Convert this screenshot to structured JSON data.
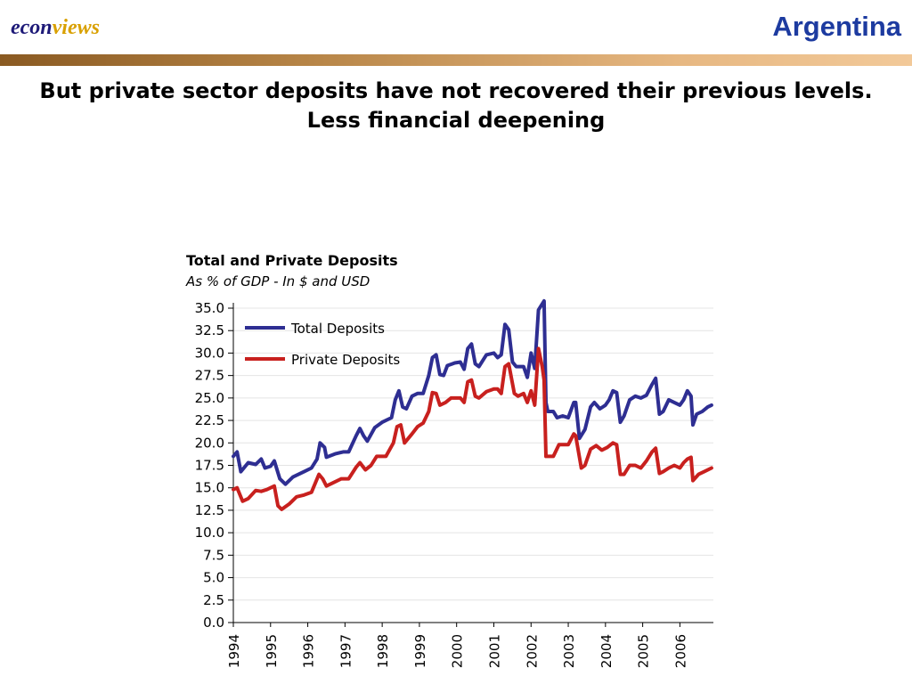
{
  "header": {
    "logo_part1": "econ",
    "logo_part2": "views",
    "country": "Argentina",
    "headline_line1": "But private sector deposits have not recovered their previous levels.",
    "headline_line2": "Less financial deepening"
  },
  "colors": {
    "logo_econ": "#1e1a78",
    "logo_views": "#d9a000",
    "country": "#1d3ba0",
    "total_series": "#2e2e92",
    "private_series": "#c8201e"
  },
  "chart_data": {
    "type": "line",
    "title": "Total and Private Deposits",
    "subtitle": "As % of GDP - In $ and USD",
    "ylim": [
      0,
      35
    ],
    "yticks": [
      "0.0",
      "2.5",
      "5.0",
      "7.5",
      "10.0",
      "12.5",
      "15.0",
      "17.5",
      "20.0",
      "22.5",
      "25.0",
      "27.5",
      "30.0",
      "32.5",
      "35.0"
    ],
    "xlim": [
      1994,
      2006.9
    ],
    "xticks": [
      "1994",
      "1995",
      "1996",
      "1997",
      "1998",
      "1999",
      "2000",
      "2001",
      "2002",
      "2003",
      "2004",
      "2005",
      "2006"
    ],
    "grid": true,
    "legend": "top-left",
    "series": [
      {
        "name": "Total Deposits",
        "points": [
          [
            1994.0,
            18.5
          ],
          [
            1994.1,
            19.0
          ],
          [
            1994.2,
            16.8
          ],
          [
            1994.4,
            17.8
          ],
          [
            1994.6,
            17.6
          ],
          [
            1994.75,
            18.2
          ],
          [
            1994.85,
            17.2
          ],
          [
            1995.0,
            17.4
          ],
          [
            1995.1,
            18.0
          ],
          [
            1995.25,
            16.0
          ],
          [
            1995.4,
            15.4
          ],
          [
            1995.6,
            16.2
          ],
          [
            1995.9,
            16.8
          ],
          [
            1996.1,
            17.2
          ],
          [
            1996.25,
            18.2
          ],
          [
            1996.33,
            20.0
          ],
          [
            1996.45,
            19.5
          ],
          [
            1996.5,
            18.4
          ],
          [
            1996.75,
            18.8
          ],
          [
            1996.95,
            19.0
          ],
          [
            1997.1,
            19.0
          ],
          [
            1997.3,
            20.8
          ],
          [
            1997.4,
            21.6
          ],
          [
            1997.5,
            20.8
          ],
          [
            1997.6,
            20.2
          ],
          [
            1997.8,
            21.7
          ],
          [
            1998.0,
            22.3
          ],
          [
            1998.25,
            22.8
          ],
          [
            1998.35,
            24.8
          ],
          [
            1998.45,
            25.8
          ],
          [
            1998.55,
            24.0
          ],
          [
            1998.65,
            23.8
          ],
          [
            1998.8,
            25.2
          ],
          [
            1998.95,
            25.5
          ],
          [
            1999.1,
            25.5
          ],
          [
            1999.25,
            27.5
          ],
          [
            1999.35,
            29.5
          ],
          [
            1999.45,
            29.8
          ],
          [
            1999.55,
            27.6
          ],
          [
            1999.65,
            27.5
          ],
          [
            1999.75,
            28.6
          ],
          [
            1999.95,
            28.9
          ],
          [
            2000.1,
            29.0
          ],
          [
            2000.2,
            28.2
          ],
          [
            2000.3,
            30.5
          ],
          [
            2000.4,
            31.0
          ],
          [
            2000.5,
            28.8
          ],
          [
            2000.6,
            28.5
          ],
          [
            2000.8,
            29.8
          ],
          [
            2001.0,
            30.0
          ],
          [
            2001.1,
            29.5
          ],
          [
            2001.2,
            29.8
          ],
          [
            2001.3,
            33.2
          ],
          [
            2001.4,
            32.6
          ],
          [
            2001.5,
            29.0
          ],
          [
            2001.6,
            28.5
          ],
          [
            2001.8,
            28.5
          ],
          [
            2001.9,
            27.3
          ],
          [
            2002.0,
            30.0
          ],
          [
            2002.1,
            28.3
          ],
          [
            2002.2,
            34.8
          ],
          [
            2002.35,
            35.8
          ],
          [
            2002.4,
            24.5
          ],
          [
            2002.45,
            23.5
          ],
          [
            2002.6,
            23.5
          ],
          [
            2002.7,
            22.8
          ],
          [
            2002.85,
            23.0
          ],
          [
            2003.0,
            22.8
          ],
          [
            2003.15,
            24.5
          ],
          [
            2003.2,
            24.5
          ],
          [
            2003.3,
            20.5
          ],
          [
            2003.45,
            21.5
          ],
          [
            2003.6,
            24.0
          ],
          [
            2003.7,
            24.5
          ],
          [
            2003.85,
            23.8
          ],
          [
            2004.0,
            24.2
          ],
          [
            2004.1,
            24.8
          ],
          [
            2004.2,
            25.8
          ],
          [
            2004.3,
            25.6
          ],
          [
            2004.4,
            22.3
          ],
          [
            2004.5,
            23.0
          ],
          [
            2004.65,
            24.8
          ],
          [
            2004.8,
            25.2
          ],
          [
            2004.95,
            25.0
          ],
          [
            2005.1,
            25.3
          ],
          [
            2005.25,
            26.5
          ],
          [
            2005.35,
            27.2
          ],
          [
            2005.45,
            23.2
          ],
          [
            2005.55,
            23.5
          ],
          [
            2005.7,
            24.8
          ],
          [
            2005.85,
            24.5
          ],
          [
            2006.0,
            24.2
          ],
          [
            2006.1,
            24.8
          ],
          [
            2006.2,
            25.8
          ],
          [
            2006.3,
            25.2
          ],
          [
            2006.35,
            22.0
          ],
          [
            2006.45,
            23.2
          ],
          [
            2006.6,
            23.5
          ],
          [
            2006.75,
            24.0
          ],
          [
            2006.85,
            24.2
          ]
        ]
      },
      {
        "name": "Private Deposits",
        "points": [
          [
            1994.0,
            14.8
          ],
          [
            1994.1,
            15.0
          ],
          [
            1994.25,
            13.5
          ],
          [
            1994.4,
            13.8
          ],
          [
            1994.6,
            14.7
          ],
          [
            1994.75,
            14.6
          ],
          [
            1994.9,
            14.8
          ],
          [
            1995.1,
            15.2
          ],
          [
            1995.2,
            13.0
          ],
          [
            1995.3,
            12.6
          ],
          [
            1995.5,
            13.2
          ],
          [
            1995.7,
            14.0
          ],
          [
            1995.9,
            14.2
          ],
          [
            1996.1,
            14.5
          ],
          [
            1996.3,
            16.5
          ],
          [
            1996.4,
            16.0
          ],
          [
            1996.5,
            15.2
          ],
          [
            1996.7,
            15.6
          ],
          [
            1996.9,
            16.0
          ],
          [
            1997.1,
            16.0
          ],
          [
            1997.3,
            17.3
          ],
          [
            1997.4,
            17.8
          ],
          [
            1997.55,
            17.0
          ],
          [
            1997.7,
            17.5
          ],
          [
            1997.85,
            18.5
          ],
          [
            1998.1,
            18.5
          ],
          [
            1998.3,
            20.0
          ],
          [
            1998.4,
            21.8
          ],
          [
            1998.5,
            22.0
          ],
          [
            1998.6,
            20.0
          ],
          [
            1998.8,
            21.0
          ],
          [
            1998.95,
            21.8
          ],
          [
            1999.1,
            22.2
          ],
          [
            1999.25,
            23.5
          ],
          [
            1999.35,
            25.6
          ],
          [
            1999.45,
            25.5
          ],
          [
            1999.55,
            24.2
          ],
          [
            1999.7,
            24.5
          ],
          [
            1999.85,
            25.0
          ],
          [
            2000.1,
            25.0
          ],
          [
            2000.2,
            24.5
          ],
          [
            2000.3,
            26.8
          ],
          [
            2000.4,
            27.0
          ],
          [
            2000.5,
            25.2
          ],
          [
            2000.6,
            25.0
          ],
          [
            2000.8,
            25.7
          ],
          [
            2001.0,
            26.0
          ],
          [
            2001.1,
            26.0
          ],
          [
            2001.2,
            25.5
          ],
          [
            2001.3,
            28.5
          ],
          [
            2001.4,
            28.8
          ],
          [
            2001.55,
            25.5
          ],
          [
            2001.65,
            25.2
          ],
          [
            2001.8,
            25.5
          ],
          [
            2001.9,
            24.5
          ],
          [
            2002.0,
            25.8
          ],
          [
            2002.1,
            24.2
          ],
          [
            2002.2,
            30.5
          ],
          [
            2002.3,
            28.5
          ],
          [
            2002.35,
            27.0
          ],
          [
            2002.4,
            18.5
          ],
          [
            2002.6,
            18.5
          ],
          [
            2002.75,
            19.8
          ],
          [
            2002.85,
            19.8
          ],
          [
            2003.0,
            19.8
          ],
          [
            2003.15,
            21.0
          ],
          [
            2003.2,
            20.8
          ],
          [
            2003.35,
            17.2
          ],
          [
            2003.45,
            17.5
          ],
          [
            2003.6,
            19.3
          ],
          [
            2003.75,
            19.7
          ],
          [
            2003.9,
            19.2
          ],
          [
            2004.05,
            19.5
          ],
          [
            2004.2,
            20.0
          ],
          [
            2004.3,
            19.8
          ],
          [
            2004.4,
            16.5
          ],
          [
            2004.5,
            16.5
          ],
          [
            2004.65,
            17.5
          ],
          [
            2004.8,
            17.5
          ],
          [
            2004.95,
            17.2
          ],
          [
            2005.1,
            18.0
          ],
          [
            2005.25,
            19.0
          ],
          [
            2005.35,
            19.4
          ],
          [
            2005.45,
            16.6
          ],
          [
            2005.55,
            16.8
          ],
          [
            2005.7,
            17.2
          ],
          [
            2005.85,
            17.5
          ],
          [
            2006.0,
            17.2
          ],
          [
            2006.1,
            17.8
          ],
          [
            2006.2,
            18.2
          ],
          [
            2006.3,
            18.4
          ],
          [
            2006.35,
            15.8
          ],
          [
            2006.5,
            16.5
          ],
          [
            2006.65,
            16.8
          ],
          [
            2006.85,
            17.2
          ]
        ]
      }
    ]
  }
}
